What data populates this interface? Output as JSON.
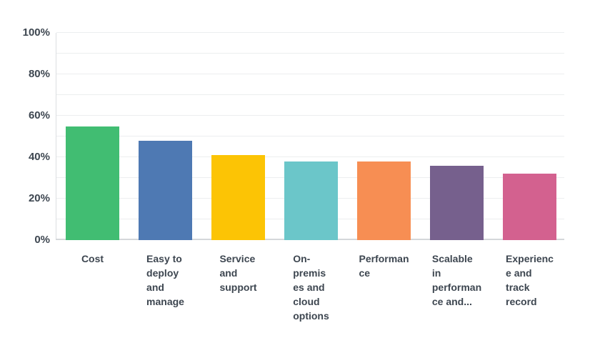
{
  "colors": {
    "background": "#ffffff",
    "text": "#3d4650",
    "gridline": "#eceeef",
    "baseline": "#d4d7da",
    "axis_line": "#dcdfe2"
  },
  "chart_data": {
    "type": "bar",
    "title": "",
    "xlabel": "",
    "ylabel": "",
    "legend": "none",
    "grid": "horizontal, minor lines every 10%",
    "ylim": [
      0,
      100
    ],
    "y_ticks": [
      {
        "value": 0,
        "label": "0%"
      },
      {
        "value": 20,
        "label": "20%"
      },
      {
        "value": 40,
        "label": "40%"
      },
      {
        "value": 60,
        "label": "60%"
      },
      {
        "value": 80,
        "label": "80%"
      },
      {
        "value": 100,
        "label": "100%"
      }
    ],
    "minor_grid_values": [
      10,
      20,
      30,
      40,
      50,
      60,
      70,
      80,
      90,
      100
    ],
    "categories": [
      "Cost",
      "Easy to deploy and manage",
      "Service and support",
      "On-premises and cloud options",
      "Performance",
      "Scalable in performance and...",
      "Experience and track record"
    ],
    "display_labels": [
      "Cost",
      "Easy to\ndeploy\nand\nmanage",
      "Service\nand\nsupport",
      "On-\npremis\nes and\ncloud\noptions",
      "Performan\nce",
      "Scalable\nin\nperforman\nce and...",
      "Experienc\ne and\ntrack\nrecord"
    ],
    "values": [
      55,
      48,
      41,
      38,
      38,
      36,
      32
    ],
    "unit": "%",
    "bar_colors": [
      "#41bd72",
      "#4e79b3",
      "#fcc405",
      "#6bc6c9",
      "#f78e53",
      "#76608d",
      "#d3618f"
    ]
  }
}
